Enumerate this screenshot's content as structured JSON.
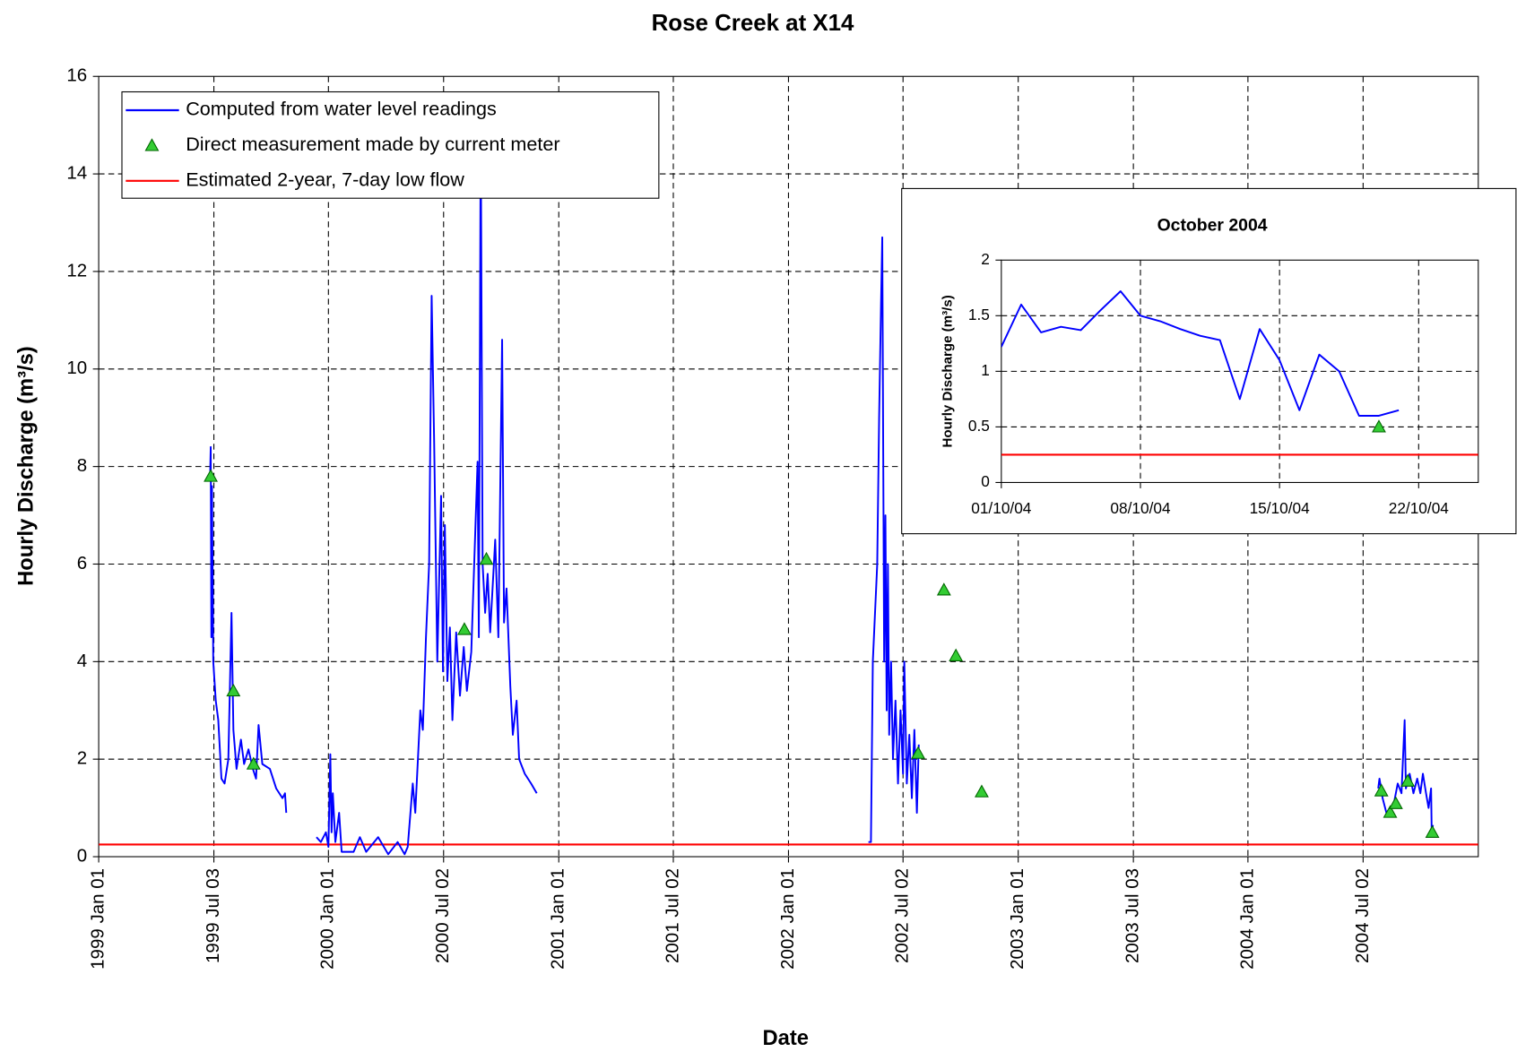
{
  "chart_data": [
    {
      "type": "line",
      "title": "Rose Creek at X14",
      "xlabel": "Date",
      "ylabel": "Hourly Discharge (m³/s)",
      "xlim": [
        "1999-01-01",
        "2005-01-01"
      ],
      "xticks": [
        {
          "value": "1999-01-01",
          "label": "1999 Jan 01"
        },
        {
          "value": "1999-07-03",
          "label": "1999 Jul 03"
        },
        {
          "value": "2000-01-01",
          "label": "2000 Jan 01"
        },
        {
          "value": "2000-07-02",
          "label": "2000 Jul 02"
        },
        {
          "value": "2001-01-01",
          "label": "2001 Jan 01"
        },
        {
          "value": "2001-07-02",
          "label": "2001 Jul 02"
        },
        {
          "value": "2002-01-01",
          "label": "2002 Jan 01"
        },
        {
          "value": "2002-07-02",
          "label": "2002 Jul 02"
        },
        {
          "value": "2003-01-01",
          "label": "2003 Jan 01"
        },
        {
          "value": "2003-07-03",
          "label": "2003 Jul 03"
        },
        {
          "value": "2004-01-01",
          "label": "2004 Jan 01"
        },
        {
          "value": "2004-07-02",
          "label": "2004 Jul 02"
        }
      ],
      "ylim": [
        0,
        16
      ],
      "yticks": [
        0,
        2,
        4,
        6,
        8,
        10,
        12,
        14,
        16
      ],
      "grid": true,
      "legend": "upper left",
      "series": [
        {
          "name": "Computed from water level readings",
          "color": "#0000ff",
          "kind": "line",
          "x": [
            "1999-06-27",
            "1999-06-28",
            "1999-06-29",
            "1999-06-30",
            "1999-07-02",
            "1999-07-06",
            "1999-07-10",
            "1999-07-15",
            "1999-07-20",
            "1999-07-26",
            "1999-07-31",
            "1999-08-03",
            "1999-08-08",
            "1999-08-15",
            "1999-08-20",
            "1999-08-27",
            "1999-09-03",
            "1999-09-08",
            "1999-09-12",
            "1999-09-18",
            "1999-09-30",
            "1999-10-10",
            "1999-10-20",
            "1999-10-24",
            "1999-10-26",
            null,
            "1999-12-13",
            "1999-12-20",
            "1999-12-28",
            "2000-01-01",
            "2000-01-04",
            "2000-01-06",
            "2000-01-08",
            "2000-01-12",
            "2000-01-18",
            "2000-01-22",
            "2000-02-10",
            "2000-02-20",
            "2000-03-01",
            "2000-03-20",
            "2000-04-05",
            "2000-04-20",
            "2000-05-01",
            "2000-05-06",
            "2000-05-14",
            "2000-05-18",
            "2000-05-26",
            "2000-05-30",
            "2000-06-04",
            "2000-06-09",
            "2000-06-13",
            "2000-06-17",
            "2000-06-22",
            "2000-06-28",
            "2000-07-01",
            "2000-07-04",
            "2000-07-08",
            "2000-07-12",
            "2000-07-16",
            "2000-07-22",
            "2000-07-28",
            "2000-08-03",
            "2000-08-08",
            "2000-08-15",
            "2000-08-25",
            "2000-08-27",
            "2000-08-30",
            "2000-09-02",
            "2000-09-06",
            "2000-09-10",
            "2000-09-14",
            "2000-09-22",
            "2000-09-27",
            "2000-10-03",
            "2000-10-06",
            "2000-10-10",
            "2000-10-16",
            "2000-10-20",
            "2000-10-26",
            "2000-10-30",
            "2000-11-08",
            "2000-11-18",
            "2000-11-27",
            null,
            "2002-05-08",
            "2002-05-12",
            "2002-05-15",
            "2002-05-22",
            "2002-05-25",
            "2002-05-28",
            "2002-05-30",
            "2002-06-02",
            "2002-06-04",
            "2002-06-06",
            "2002-06-08",
            "2002-06-10",
            "2002-06-13",
            "2002-06-16",
            "2002-06-20",
            "2002-06-24",
            "2002-06-28",
            "2002-07-02",
            "2002-07-04",
            "2002-07-08",
            "2002-07-12",
            "2002-07-16",
            "2002-07-20",
            "2002-07-24",
            "2002-07-27",
            null,
            "2004-07-26",
            "2004-07-28",
            "2004-08-02",
            "2004-08-08",
            "2004-08-14",
            "2004-08-20",
            "2004-08-26",
            "2004-09-01",
            "2004-09-06",
            "2004-09-08",
            "2004-09-14",
            "2004-09-20",
            "2004-09-26",
            "2004-10-01",
            "2004-10-05",
            "2004-10-10",
            "2004-10-14",
            "2004-10-18",
            "2004-10-19",
            "2004-10-21"
          ],
          "values": [
            7.8,
            8.4,
            4.5,
            7.6,
            4.0,
            3.2,
            2.8,
            1.6,
            1.5,
            2.0,
            5.0,
            2.6,
            1.8,
            2.4,
            1.9,
            2.2,
            1.8,
            1.6,
            2.7,
            1.9,
            1.8,
            1.4,
            1.2,
            1.3,
            0.9,
            null,
            0.4,
            0.3,
            0.5,
            0.2,
            2.1,
            0.5,
            1.3,
            0.3,
            0.9,
            0.1,
            0.1,
            0.4,
            0.1,
            0.4,
            0.05,
            0.3,
            0.05,
            0.2,
            1.5,
            0.9,
            3.0,
            2.6,
            4.5,
            6.0,
            11.5,
            8.5,
            4.0,
            7.4,
            3.8,
            6.8,
            3.6,
            4.7,
            2.8,
            4.6,
            3.3,
            4.3,
            3.4,
            4.2,
            8.1,
            4.5,
            15.0,
            6.0,
            5.0,
            5.8,
            4.6,
            6.5,
            4.5,
            10.6,
            4.8,
            5.5,
            3.5,
            2.5,
            3.2,
            2.0,
            1.7,
            1.5,
            1.3,
            null,
            0.3,
            0.3,
            4.0,
            6.0,
            9.0,
            11.3,
            12.7,
            4.0,
            7.0,
            3.0,
            6.0,
            2.5,
            4.0,
            2.0,
            3.2,
            1.5,
            3.0,
            1.7,
            4.0,
            1.5,
            2.5,
            1.2,
            2.6,
            0.9,
            2.3,
            null,
            1.4,
            1.6,
            1.2,
            0.9,
            1.0,
            1.1,
            1.5,
            1.3,
            2.8,
            1.4,
            1.7,
            1.3,
            1.6,
            1.3,
            1.7,
            1.3,
            1.0,
            1.4,
            0.5,
            0.65
          ]
        },
        {
          "name": "Direct measurement made by current meter",
          "color": "#33cc33",
          "kind": "marker",
          "x": [
            "1999-06-28",
            "1999-08-03",
            "1999-09-04",
            "2000-08-04",
            "2000-09-08",
            "2002-07-26",
            "2002-09-05",
            "2002-09-24",
            "2002-11-04",
            "2004-07-31",
            "2004-08-14",
            "2004-08-23",
            "2004-09-11",
            "2004-10-20"
          ],
          "values": [
            7.8,
            3.4,
            1.9,
            4.66,
            6.1,
            2.12,
            5.47,
            4.12,
            1.33,
            1.35,
            0.91,
            1.09,
            1.55,
            0.5
          ]
        },
        {
          "name": "Estimated 2-year, 7-day low flow",
          "color": "#ff0000",
          "kind": "hline",
          "values": [
            0.25
          ]
        }
      ]
    },
    {
      "type": "line",
      "title": "October 2004",
      "ylabel": "Hourly Discharge (m³/s)",
      "xlim": [
        "2004-10-01",
        "2004-10-25"
      ],
      "xticks": [
        {
          "value": "2004-10-01",
          "label": "01/10/04"
        },
        {
          "value": "2004-10-08",
          "label": "08/10/04"
        },
        {
          "value": "2004-10-15",
          "label": "15/10/04"
        },
        {
          "value": "2004-10-22",
          "label": "22/10/04"
        }
      ],
      "ylim": [
        0,
        2
      ],
      "yticks": [
        0,
        0.5,
        1,
        1.5,
        2
      ],
      "grid": true,
      "series": [
        {
          "color": "#0000ff",
          "kind": "line",
          "x": [
            "2004-10-01",
            "2004-10-02",
            "2004-10-03",
            "2004-10-04",
            "2004-10-05",
            "2004-10-06",
            "2004-10-07",
            "2004-10-08",
            "2004-10-09",
            "2004-10-10",
            "2004-10-11",
            "2004-10-12",
            "2004-10-13",
            "2004-10-14",
            "2004-10-15",
            "2004-10-16",
            "2004-10-17",
            "2004-10-18",
            "2004-10-19",
            "2004-10-20",
            "2004-10-21"
          ],
          "values": [
            1.22,
            1.6,
            1.35,
            1.4,
            1.37,
            1.55,
            1.72,
            1.5,
            1.45,
            1.38,
            1.32,
            1.28,
            0.75,
            1.38,
            1.1,
            0.65,
            1.15,
            1.0,
            0.6,
            0.6,
            0.65
          ]
        },
        {
          "color": "#33cc33",
          "kind": "marker",
          "x": [
            "2004-10-20"
          ],
          "values": [
            0.5
          ]
        },
        {
          "color": "#ff0000",
          "kind": "hline",
          "values": [
            0.25
          ]
        }
      ]
    }
  ]
}
